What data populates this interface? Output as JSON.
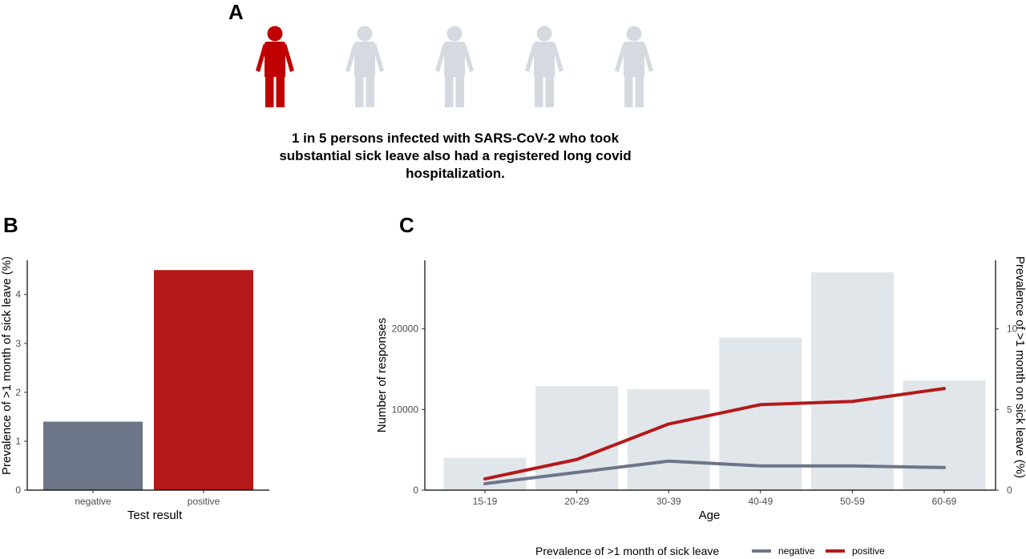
{
  "panel_labels": {
    "a": "A",
    "b": "B",
    "c": "C"
  },
  "infographic": {
    "caption": "1 in 5 persons infected with SARS-CoV-2 who took substantial sick leave also had a registered long covid hospitalization.",
    "icons": [
      "person-icon",
      "person-icon",
      "person-icon",
      "person-icon",
      "person-icon"
    ],
    "highlighted_count": 1,
    "total_count": 5,
    "highlight_color": "#C00000",
    "muted_color": "#D5DAE1"
  },
  "chart_data": [
    {
      "id": "B",
      "type": "bar",
      "categories": [
        "negative",
        "positive"
      ],
      "values": [
        1.4,
        4.5
      ],
      "colors": [
        "#6D7588",
        "#B5191A"
      ],
      "xlabel": "Test result",
      "ylabel": "Prevalence of >1 month of sick leave (%)",
      "ylim": [
        0,
        4.7
      ],
      "yticks": [
        0,
        1,
        2,
        3,
        4
      ],
      "grid": false
    },
    {
      "id": "C",
      "type": "bar+line",
      "categories": [
        "15-19",
        "20-29",
        "30-39",
        "40-49",
        "50-59",
        "60-69"
      ],
      "bars": {
        "values": [
          4000,
          12900,
          12500,
          18900,
          27000,
          13600
        ],
        "color": "#E1E6EA"
      },
      "xlabel": "Age",
      "ylabel": "Number of responses",
      "ylim": [
        0,
        28500
      ],
      "yticks": [
        0,
        10000,
        20000
      ],
      "y2label": "Prevalence of >1 month on sick leave (%)",
      "y2lim": [
        0,
        14.25
      ],
      "y2ticks": [
        0,
        5,
        10
      ],
      "series": [
        {
          "name": "negative",
          "values": [
            0.4,
            1.1,
            1.8,
            1.5,
            1.5,
            1.4
          ],
          "color": "#6D7588"
        },
        {
          "name": "positive",
          "values": [
            0.7,
            1.9,
            4.1,
            5.3,
            5.5,
            6.3
          ],
          "color": "#B5191A"
        }
      ],
      "legend_title": "Prevalence of >1 month of sick leave",
      "legend_position": "bottom",
      "grid": false
    }
  ]
}
